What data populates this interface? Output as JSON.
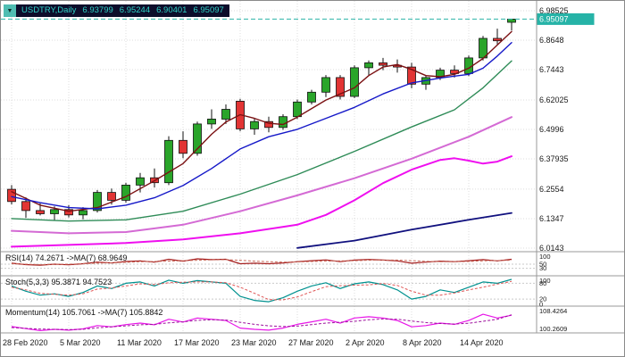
{
  "legend": {
    "collapse_icon": "▼",
    "symbol": "USDTRY,Daily",
    "open": "6.93799",
    "high": "6.95244",
    "low": "6.90401",
    "close": "6.95097"
  },
  "price_axis": {
    "labels": [
      "6.98525",
      "6.8648",
      "6.7443",
      "6.62025",
      "6.4996",
      "6.37935",
      "6.2554",
      "6.1347",
      "6.0143"
    ],
    "current_price": "6.95097"
  },
  "time_axis": {
    "labels": [
      {
        "text": "28 Feb 2020",
        "i": 0
      },
      {
        "text": "5 Mar 2020",
        "i": 4
      },
      {
        "text": "11 Mar 2020",
        "i": 8
      },
      {
        "text": "17 Mar 2020",
        "i": 12
      },
      {
        "text": "23 Mar 2020",
        "i": 16
      },
      {
        "text": "27 Mar 2020",
        "i": 20
      },
      {
        "text": "2 Apr 2020",
        "i": 24
      },
      {
        "text": "8 Apr 2020",
        "i": 28
      },
      {
        "text": "14 Apr 2020",
        "i": 32
      }
    ]
  },
  "chart_data": {
    "type": "candlestick",
    "symbol": "USDTRY",
    "timeframe": "Daily",
    "price_range": [
      6.0143,
      6.98525
    ],
    "current_price": 6.95097,
    "up_color": "#2aa52a",
    "down_color": "#e23434",
    "accent_teal": "#26b3a7",
    "ohlc": [
      [
        6.255,
        6.272,
        6.193,
        6.205
      ],
      [
        6.205,
        6.222,
        6.138,
        6.168
      ],
      [
        6.168,
        6.198,
        6.148,
        6.155
      ],
      [
        6.155,
        6.185,
        6.128,
        6.172
      ],
      [
        6.172,
        6.19,
        6.14,
        6.15
      ],
      [
        6.15,
        6.182,
        6.132,
        6.168
      ],
      [
        6.168,
        6.252,
        6.16,
        6.242
      ],
      [
        6.242,
        6.258,
        6.192,
        6.21
      ],
      [
        6.21,
        6.282,
        6.2,
        6.272
      ],
      [
        6.272,
        6.322,
        6.242,
        6.302
      ],
      [
        6.302,
        6.34,
        6.262,
        6.282
      ],
      [
        6.282,
        6.472,
        6.272,
        6.455
      ],
      [
        6.455,
        6.492,
        6.382,
        6.402
      ],
      [
        6.402,
        6.532,
        6.392,
        6.522
      ],
      [
        6.522,
        6.582,
        6.502,
        6.542
      ],
      [
        6.542,
        6.602,
        6.522,
        6.582
      ],
      [
        6.615,
        6.625,
        6.492,
        6.502
      ],
      [
        6.502,
        6.545,
        6.478,
        6.532
      ],
      [
        6.532,
        6.552,
        6.488,
        6.508
      ],
      [
        6.508,
        6.562,
        6.498,
        6.552
      ],
      [
        6.552,
        6.622,
        6.542,
        6.612
      ],
      [
        6.612,
        6.662,
        6.602,
        6.652
      ],
      [
        6.652,
        6.722,
        6.632,
        6.712
      ],
      [
        6.712,
        6.722,
        6.622,
        6.635
      ],
      [
        6.635,
        6.762,
        6.628,
        6.752
      ],
      [
        6.752,
        6.782,
        6.722,
        6.772
      ],
      [
        6.772,
        6.792,
        6.742,
        6.762
      ],
      [
        6.762,
        6.786,
        6.732,
        6.755
      ],
      [
        6.755,
        6.772,
        6.668,
        6.685
      ],
      [
        6.685,
        6.722,
        6.662,
        6.712
      ],
      [
        6.712,
        6.752,
        6.702,
        6.742
      ],
      [
        6.742,
        6.762,
        6.712,
        6.728
      ],
      [
        6.728,
        6.802,
        6.718,
        6.792
      ],
      [
        6.792,
        6.882,
        6.782,
        6.872
      ],
      [
        6.872,
        6.912,
        6.848,
        6.862
      ],
      [
        6.93799,
        6.95244,
        6.90401,
        6.95097
      ]
    ],
    "overlays": [
      {
        "name": "ma-fast-darkred",
        "color": "#7b1113",
        "width": 1.4,
        "points": [
          [
            0,
            6.245
          ],
          [
            2,
            6.19
          ],
          [
            4,
            6.165
          ],
          [
            6,
            6.18
          ],
          [
            8,
            6.225
          ],
          [
            10,
            6.29
          ],
          [
            12,
            6.36
          ],
          [
            14,
            6.48
          ],
          [
            15,
            6.53
          ],
          [
            16,
            6.56
          ],
          [
            17,
            6.545
          ],
          [
            18,
            6.525
          ],
          [
            19,
            6.52
          ],
          [
            20,
            6.55
          ],
          [
            22,
            6.62
          ],
          [
            24,
            6.67
          ],
          [
            25,
            6.72
          ],
          [
            26,
            6.755
          ],
          [
            27,
            6.765
          ],
          [
            28,
            6.745
          ],
          [
            29,
            6.72
          ],
          [
            30,
            6.715
          ],
          [
            31,
            6.725
          ],
          [
            32,
            6.75
          ],
          [
            33,
            6.79
          ],
          [
            34,
            6.845
          ],
          [
            35,
            6.9
          ]
        ]
      },
      {
        "name": "ma-blue",
        "color": "#1518c8",
        "width": 1.4,
        "points": [
          [
            0,
            6.225
          ],
          [
            2,
            6.2
          ],
          [
            4,
            6.18
          ],
          [
            6,
            6.175
          ],
          [
            8,
            6.19
          ],
          [
            10,
            6.22
          ],
          [
            12,
            6.27
          ],
          [
            14,
            6.34
          ],
          [
            16,
            6.42
          ],
          [
            18,
            6.47
          ],
          [
            20,
            6.5
          ],
          [
            22,
            6.545
          ],
          [
            24,
            6.59
          ],
          [
            26,
            6.645
          ],
          [
            28,
            6.69
          ],
          [
            30,
            6.71
          ],
          [
            32,
            6.725
          ],
          [
            33,
            6.75
          ],
          [
            34,
            6.8
          ],
          [
            35,
            6.855
          ]
        ]
      },
      {
        "name": "ma-green",
        "color": "#2e8b57",
        "width": 1.4,
        "points": [
          [
            0,
            6.135
          ],
          [
            4,
            6.125
          ],
          [
            8,
            6.13
          ],
          [
            12,
            6.165
          ],
          [
            16,
            6.235
          ],
          [
            20,
            6.315
          ],
          [
            24,
            6.41
          ],
          [
            28,
            6.51
          ],
          [
            31,
            6.58
          ],
          [
            33,
            6.67
          ],
          [
            35,
            6.78
          ]
        ]
      },
      {
        "name": "ma-violet",
        "color": "#d46ad4",
        "width": 2,
        "points": [
          [
            0,
            6.085
          ],
          [
            4,
            6.075
          ],
          [
            8,
            6.08
          ],
          [
            12,
            6.11
          ],
          [
            16,
            6.165
          ],
          [
            20,
            6.23
          ],
          [
            24,
            6.3
          ],
          [
            28,
            6.38
          ],
          [
            32,
            6.47
          ],
          [
            35,
            6.55
          ]
        ]
      },
      {
        "name": "ma-magenta",
        "color": "#ef0fef",
        "width": 2,
        "points": [
          [
            0,
            6.02
          ],
          [
            8,
            6.035
          ],
          [
            12,
            6.05
          ],
          [
            16,
            6.075
          ],
          [
            20,
            6.11
          ],
          [
            22,
            6.15
          ],
          [
            24,
            6.21
          ],
          [
            26,
            6.28
          ],
          [
            28,
            6.335
          ],
          [
            30,
            6.375
          ],
          [
            31,
            6.382
          ],
          [
            32,
            6.372
          ],
          [
            33,
            6.36
          ],
          [
            34,
            6.368
          ],
          [
            35,
            6.39
          ]
        ]
      },
      {
        "name": "ma-navy",
        "color": "#10107e",
        "width": 1.8,
        "points": [
          [
            20,
            6.015
          ],
          [
            24,
            6.045
          ],
          [
            28,
            6.09
          ],
          [
            32,
            6.13
          ],
          [
            35,
            6.158
          ]
        ]
      }
    ],
    "panels": {
      "rsi": {
        "label": "RSI(14) 74.2671 ->MA(7) 68.9649",
        "range": [
          0,
          100
        ],
        "levels": [
          50,
          30
        ],
        "axis_labels": [
          "100",
          "50",
          "30"
        ],
        "color": "#a51d1d",
        "ma_color": "#c96a5a",
        "series": [
          55,
          48,
          45,
          50,
          47,
          52,
          60,
          56,
          63,
          66,
          60,
          74,
          65,
          76,
          72,
          74,
          52,
          55,
          52,
          56,
          62,
          67,
          71,
          62,
          70,
          73,
          70,
          66,
          55,
          60,
          65,
          62,
          67,
          72,
          66,
          74
        ],
        "ma_series": [
          52,
          50,
          48,
          49,
          50,
          52,
          55,
          57,
          59,
          62,
          63,
          65,
          67,
          69,
          71,
          72,
          69,
          65,
          62,
          60,
          61,
          63,
          65,
          66,
          67,
          69,
          70,
          70,
          67,
          64,
          62,
          62,
          63,
          66,
          68,
          69
        ]
      },
      "stoch": {
        "label": "Stoch(5,3,3) 95.3871 94.7523",
        "range": [
          0,
          100
        ],
        "levels": [
          80,
          20
        ],
        "axis_labels": [
          "100",
          "80",
          "20",
          "0"
        ],
        "color": "#00918f",
        "signal_color": "#e05555",
        "series": [
          70,
          50,
          35,
          40,
          30,
          45,
          70,
          60,
          80,
          85,
          70,
          92,
          80,
          90,
          85,
          80,
          30,
          15,
          10,
          25,
          50,
          70,
          82,
          60,
          78,
          85,
          75,
          55,
          20,
          30,
          55,
          45,
          65,
          85,
          80,
          95
        ],
        "signal_series": [
          65,
          55,
          42,
          38,
          35,
          40,
          58,
          62,
          70,
          78,
          75,
          82,
          84,
          85,
          85,
          82,
          65,
          42,
          18,
          17,
          28,
          48,
          67,
          71,
          73,
          74,
          79,
          72,
          50,
          35,
          35,
          43,
          55,
          65,
          77,
          87
        ]
      },
      "momentum": {
        "label": "Momentum(14) 105.7061 ->MA(7) 105.8842",
        "range": [
          99.4,
          108.43
        ],
        "levels": [],
        "axis_labels": [
          "108.4264",
          "100.2609"
        ],
        "color": "#e816e8",
        "ma_color": "#9c0f9c",
        "series": [
          101.2,
          100.4,
          99.6,
          100.1,
          99.8,
          100.3,
          101.6,
          101.1,
          102,
          102.6,
          101.9,
          104.1,
          103,
          104.6,
          104.1,
          103.6,
          100.6,
          100.1,
          99.8,
          100.6,
          102.1,
          103.1,
          104.1,
          102.6,
          104.6,
          105.1,
          104.6,
          103.6,
          101.1,
          101.6,
          102.6,
          102.1,
          103.6,
          106.1,
          104.6,
          105.71
        ],
        "ma_series": [
          100.8,
          100.5,
          100.2,
          100.1,
          100,
          100.1,
          100.7,
          101.1,
          101.5,
          101.9,
          102.1,
          102.7,
          103.1,
          103.7,
          103.9,
          103.8,
          102.9,
          102.1,
          101.5,
          101.2,
          101.4,
          102,
          102.6,
          102.9,
          103.3,
          103.9,
          104.2,
          104.1,
          103.4,
          102.8,
          102.4,
          102.2,
          102.5,
          103.3,
          104.1,
          105.88
        ]
      }
    }
  }
}
